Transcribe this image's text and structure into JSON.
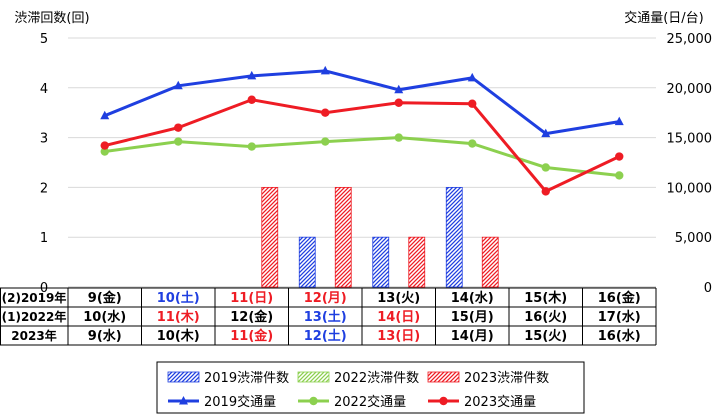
{
  "chart_data": {
    "type": "bar+line",
    "left_axis_title": "渋滞回数(回)",
    "right_axis_title": "交通量(日/台)",
    "ylim_left": [
      0,
      5
    ],
    "ylim_right": [
      0,
      25000
    ],
    "left_ticks": [
      "0",
      "1",
      "2",
      "3",
      "4",
      "5"
    ],
    "right_ticks": [
      "0",
      "5,000",
      "10,000",
      "15,000",
      "20,000",
      "25,000"
    ],
    "gridlines": true,
    "colors": {
      "blue": "#1f3fe0",
      "green": "#8cd04f",
      "red": "#ee1c24",
      "black": "#000000"
    },
    "date_table": {
      "rows": [
        {
          "label": "(2)2019年",
          "cells": [
            "9(金)",
            "10(土)",
            "11(日)",
            "12(月)",
            "13(火)",
            "14(水)",
            "15(木)",
            "16(金)"
          ],
          "colors": [
            "black",
            "blue",
            "red",
            "red",
            "black",
            "black",
            "black",
            "black"
          ]
        },
        {
          "label": "(1)2022年",
          "cells": [
            "10(水)",
            "11(木)",
            "12(金)",
            "13(土)",
            "14(日)",
            "15(月)",
            "16(火)",
            "17(水)"
          ],
          "colors": [
            "black",
            "red",
            "black",
            "blue",
            "red",
            "black",
            "black",
            "black"
          ]
        },
        {
          "label": "2023年",
          "cells": [
            "9(水)",
            "10(木)",
            "11(金)",
            "12(土)",
            "13(日)",
            "14(月)",
            "15(火)",
            "16(水)"
          ],
          "colors": [
            "black",
            "black",
            "red",
            "blue",
            "red",
            "black",
            "black",
            "black"
          ]
        }
      ]
    },
    "bar_series": [
      {
        "name": "2019渋滞件数",
        "color": "#1f3fe0",
        "values": [
          0,
          0,
          0,
          1,
          1,
          2,
          0,
          0
        ]
      },
      {
        "name": "2022渋滞件数",
        "color": "#8cd04f",
        "values": [
          0,
          0,
          0,
          0,
          0,
          0,
          0,
          0
        ]
      },
      {
        "name": "2023渋滞件数",
        "color": "#ee1c24",
        "values": [
          0,
          0,
          2,
          2,
          1,
          1,
          0,
          0
        ]
      }
    ],
    "line_series": [
      {
        "name": "2019交通量",
        "color": "#1f3fe0",
        "marker": "triangle",
        "values": [
          17200,
          20200,
          21200,
          21700,
          19800,
          21000,
          15400,
          16600
        ]
      },
      {
        "name": "2022交通量",
        "color": "#8cd04f",
        "marker": "circle",
        "values": [
          13600,
          14600,
          14100,
          14600,
          15000,
          14400,
          12000,
          11200
        ]
      },
      {
        "name": "2023交通量",
        "color": "#ee1c24",
        "marker": "circle",
        "values": [
          14200,
          16000,
          18800,
          17500,
          18500,
          18400,
          9600,
          13100
        ]
      }
    ],
    "legend_position": "bottom"
  }
}
